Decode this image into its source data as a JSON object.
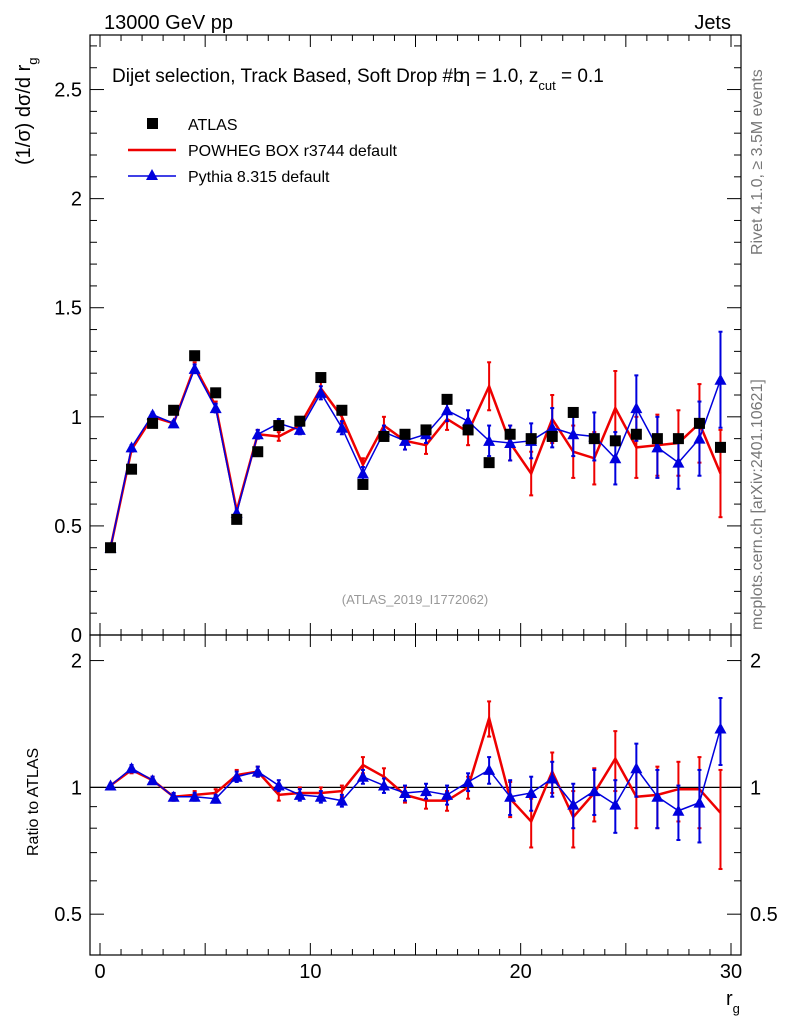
{
  "header": {
    "energy_label": "13000 GeV pp",
    "process_label": "Jets",
    "rivet_label": "Rivet 4.1.0, ≥ 3.5M events",
    "mcplots_label": "mcplots.cern.ch [arXiv:2401.10621]",
    "analysis_label": "(ATLAS_2019_I1772062)"
  },
  "chart_data": [
    {
      "type": "scatter",
      "panel": "main",
      "title_main": "Dijet selection, Track Based, Soft Drop #b",
      "title_eta": "η = 1.0, z",
      "title_sub": "cut",
      "title_end": " = 0.1",
      "ylabel_main": "(1/σ) dσ/d r",
      "ylabel_sub": "g",
      "xlim": [
        0,
        30
      ],
      "ylim": [
        0,
        2.75
      ],
      "yticks": [
        0,
        0.5,
        1,
        1.5,
        2,
        2.5
      ],
      "ytick_labels": [
        "0",
        "0.5",
        "1",
        "1.5",
        "2",
        "2.5"
      ],
      "legend_position": "top-left",
      "x": [
        0.5,
        1.5,
        2.5,
        3.5,
        4.5,
        5.5,
        6.5,
        7.5,
        8.5,
        9.5,
        10.5,
        11.5,
        12.5,
        13.5,
        14.5,
        15.5,
        16.5,
        17.5,
        18.5,
        19.5,
        20.5,
        21.5,
        22.5,
        23.5,
        24.5,
        25.5,
        26.5,
        27.5,
        28.5,
        29.5
      ],
      "series": [
        {
          "name": "ATLAS",
          "style": "square-markers",
          "color": "#000000",
          "values": [
            0.4,
            0.76,
            0.97,
            1.03,
            1.28,
            1.11,
            0.53,
            0.84,
            0.96,
            0.98,
            1.18,
            1.03,
            0.69,
            0.91,
            0.92,
            0.94,
            1.08,
            0.94,
            0.79,
            0.92,
            0.9,
            0.91,
            1.02,
            0.9,
            0.89,
            0.92,
            0.9,
            0.9,
            0.97,
            0.86
          ]
        },
        {
          "name": "POWHEG BOX r3744 default",
          "style": "line",
          "color": "#ee0000",
          "values": [
            0.4,
            0.85,
            1.0,
            0.97,
            1.23,
            1.05,
            0.57,
            0.92,
            0.91,
            0.96,
            1.13,
            1.0,
            0.78,
            0.96,
            0.89,
            0.87,
            0.99,
            0.93,
            1.14,
            0.88,
            0.74,
            0.99,
            0.84,
            0.81,
            1.04,
            0.86,
            0.87,
            0.88,
            0.97,
            0.74
          ],
          "errors": [
            0.01,
            0.01,
            0.01,
            0.01,
            0.02,
            0.02,
            0.01,
            0.02,
            0.02,
            0.02,
            0.03,
            0.03,
            0.03,
            0.04,
            0.04,
            0.04,
            0.05,
            0.06,
            0.11,
            0.08,
            0.1,
            0.11,
            0.12,
            0.12,
            0.17,
            0.14,
            0.14,
            0.15,
            0.18,
            0.2
          ]
        },
        {
          "name": "Pythia 8.315 default",
          "style": "line-triangles",
          "color": "#0000dd",
          "values": [
            0.4,
            0.86,
            1.01,
            0.97,
            1.22,
            1.04,
            0.56,
            0.92,
            0.97,
            0.94,
            1.11,
            0.95,
            0.74,
            0.93,
            0.89,
            0.92,
            1.03,
            0.98,
            0.89,
            0.88,
            0.89,
            0.95,
            0.92,
            0.91,
            0.81,
            1.04,
            0.86,
            0.79,
            0.9,
            1.17
          ],
          "errors": [
            0.01,
            0.01,
            0.01,
            0.01,
            0.02,
            0.02,
            0.01,
            0.02,
            0.02,
            0.02,
            0.03,
            0.03,
            0.03,
            0.03,
            0.04,
            0.04,
            0.05,
            0.05,
            0.07,
            0.08,
            0.08,
            0.09,
            0.1,
            0.11,
            0.12,
            0.15,
            0.14,
            0.12,
            0.17,
            0.22
          ]
        }
      ]
    },
    {
      "type": "scatter",
      "panel": "ratio",
      "ylabel": "Ratio to ATLAS",
      "xlabel_main": "r",
      "xlabel_sub": "g",
      "xlim": [
        0,
        30
      ],
      "ylim": [
        0.4,
        2.3
      ],
      "xticks": [
        0,
        10,
        20,
        30
      ],
      "xtick_labels": [
        "0",
        "10",
        "20",
        "30"
      ],
      "yticks": [
        0.5,
        1,
        2
      ],
      "ytick_labels": [
        "0.5",
        "1",
        "2"
      ],
      "reference_line": 1,
      "x": [
        0.5,
        1.5,
        2.5,
        3.5,
        4.5,
        5.5,
        6.5,
        7.5,
        8.5,
        9.5,
        10.5,
        11.5,
        12.5,
        13.5,
        14.5,
        15.5,
        16.5,
        17.5,
        18.5,
        19.5,
        20.5,
        21.5,
        22.5,
        23.5,
        24.5,
        25.5,
        26.5,
        27.5,
        28.5,
        29.5
      ],
      "series": [
        {
          "name": "POWHEG BOX r3744 default",
          "color": "#ee0000",
          "values": [
            1.01,
            1.1,
            1.04,
            0.95,
            0.96,
            0.97,
            1.07,
            1.09,
            0.96,
            0.97,
            0.97,
            0.98,
            1.13,
            1.06,
            0.96,
            0.93,
            0.93,
            1.0,
            1.46,
            0.94,
            0.83,
            1.09,
            0.85,
            0.97,
            1.17,
            0.95,
            0.96,
            0.99,
            0.99,
            0.87
          ],
          "errors": [
            0.01,
            0.02,
            0.02,
            0.02,
            0.02,
            0.02,
            0.03,
            0.03,
            0.03,
            0.03,
            0.03,
            0.03,
            0.05,
            0.05,
            0.04,
            0.04,
            0.05,
            0.06,
            0.14,
            0.09,
            0.11,
            0.12,
            0.13,
            0.14,
            0.19,
            0.15,
            0.16,
            0.16,
            0.19,
            0.23
          ]
        },
        {
          "name": "Pythia 8.315 default",
          "color": "#0000dd",
          "values": [
            1.01,
            1.11,
            1.04,
            0.95,
            0.95,
            0.94,
            1.06,
            1.09,
            1.01,
            0.96,
            0.95,
            0.93,
            1.06,
            1.01,
            0.97,
            0.98,
            0.96,
            1.03,
            1.1,
            0.95,
            0.97,
            1.05,
            0.91,
            0.98,
            0.91,
            1.11,
            0.95,
            0.88,
            0.92,
            1.38
          ],
          "errors": [
            0.01,
            0.02,
            0.02,
            0.02,
            0.02,
            0.02,
            0.03,
            0.03,
            0.03,
            0.03,
            0.03,
            0.03,
            0.04,
            0.04,
            0.04,
            0.04,
            0.05,
            0.05,
            0.08,
            0.09,
            0.09,
            0.1,
            0.11,
            0.12,
            0.13,
            0.16,
            0.15,
            0.13,
            0.18,
            0.25
          ]
        }
      ]
    }
  ]
}
